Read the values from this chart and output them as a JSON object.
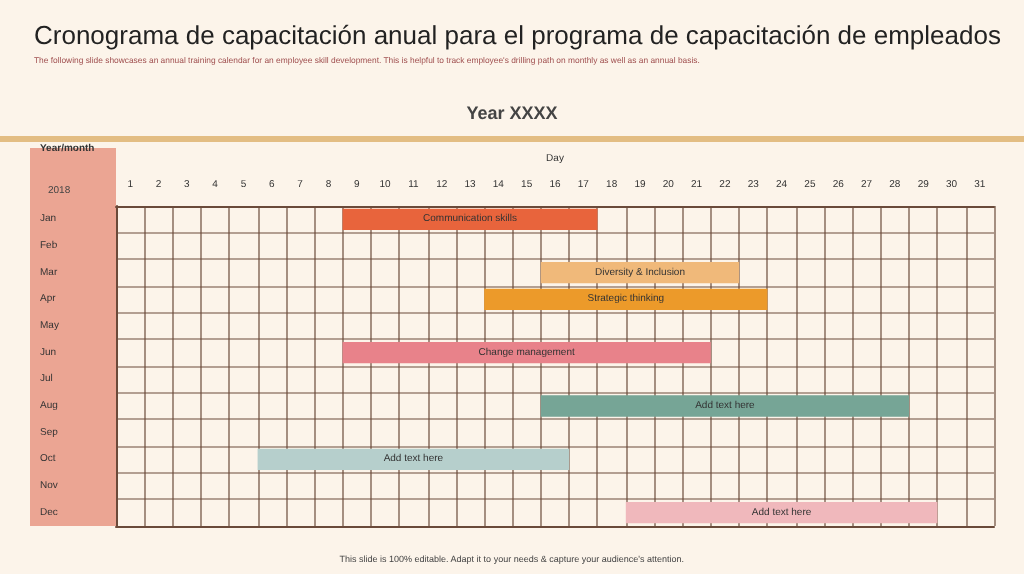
{
  "chart_data": {
    "type": "bar",
    "orientation": "horizontal",
    "title": "Cronograma de capacitación anual para el programa de capacitación de empleados",
    "subtitle": "The following slide showcases an annual training calendar for an employee skill development. This is helpful to track employee's drilling path on monthly as well as an annual basis.",
    "xlabel": "Day",
    "ylabel": "Year/month",
    "annotations": [
      "Year XXXX",
      "2018",
      "This slide is 100% editable. Adapt it to your needs & capture your audience's attention."
    ],
    "categories": [
      "Jan",
      "Feb",
      "Mar",
      "Apr",
      "May",
      "Jun",
      "Jul",
      "Aug",
      "Sep",
      "Oct",
      "Nov",
      "Dec"
    ],
    "base": [
      8,
      null,
      15,
      13,
      null,
      8,
      null,
      15,
      null,
      5,
      null,
      18
    ],
    "values": [
      9,
      null,
      7,
      10,
      null,
      13,
      null,
      13,
      null,
      11,
      null,
      11
    ],
    "colors": [
      "#e8643c",
      null,
      "#f0b97a",
      "#ec9a2a",
      null,
      "#e8828a",
      null,
      "#76a596",
      null,
      "#b6cfcc",
      null,
      "#f0b8bc"
    ],
    "value_labels": [
      "Communication skills",
      null,
      "Diversity & Inclusion",
      "Strategic thinking",
      null,
      "Change management",
      null,
      "Add text here",
      null,
      "Add text here",
      null,
      "Add text here"
    ],
    "xlim": [
      0,
      31
    ],
    "xticks": [
      {
        "value": 0.5,
        "label": "1"
      },
      {
        "value": 1.5,
        "label": "2"
      },
      {
        "value": 2.5,
        "label": "3"
      },
      {
        "value": 3.5,
        "label": "4"
      },
      {
        "value": 4.5,
        "label": "5"
      },
      {
        "value": 5.5,
        "label": "6"
      },
      {
        "value": 6.5,
        "label": "7"
      },
      {
        "value": 7.5,
        "label": "8"
      },
      {
        "value": 8.5,
        "label": "9"
      },
      {
        "value": 9.5,
        "label": "10"
      },
      {
        "value": 10.5,
        "label": "11"
      },
      {
        "value": 11.5,
        "label": "12"
      },
      {
        "value": 12.5,
        "label": "13"
      },
      {
        "value": 13.5,
        "label": "14"
      },
      {
        "value": 14.5,
        "label": "15"
      },
      {
        "value": 15.5,
        "label": "16"
      },
      {
        "value": 16.5,
        "label": "17"
      },
      {
        "value": 17.5,
        "label": "18"
      },
      {
        "value": 18.5,
        "label": "19"
      },
      {
        "value": 19.5,
        "label": "20"
      },
      {
        "value": 20.5,
        "label": "21"
      },
      {
        "value": 21.5,
        "label": "22"
      },
      {
        "value": 22.5,
        "label": "23"
      },
      {
        "value": 23.5,
        "label": "24"
      },
      {
        "value": 24.5,
        "label": "25"
      },
      {
        "value": 25.5,
        "label": "26"
      },
      {
        "value": 26.5,
        "label": "27"
      },
      {
        "value": 27.5,
        "label": "28"
      },
      {
        "value": 28.5,
        "label": "29"
      },
      {
        "value": 29.5,
        "label": "30"
      },
      {
        "value": 30.5,
        "label": "31"
      }
    ],
    "grid": true
  }
}
